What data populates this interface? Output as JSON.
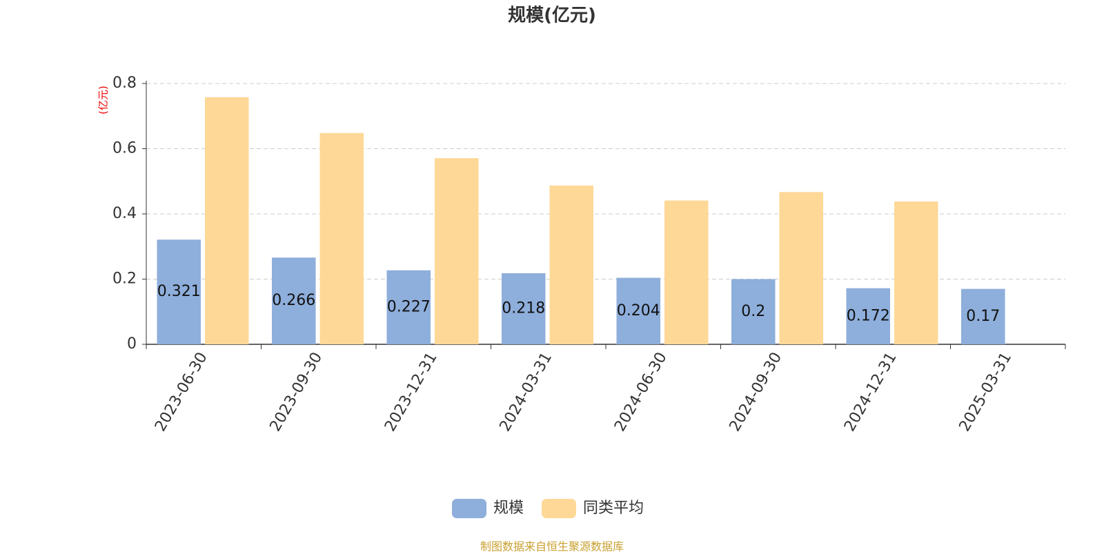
{
  "chart_data": {
    "type": "bar",
    "title": "规模(亿元)",
    "y_label": "(亿元)",
    "categories": [
      "2023-06-30",
      "2023-09-30",
      "2023-12-31",
      "2024-03-31",
      "2024-06-30",
      "2024-09-30",
      "2024-12-31",
      "2025-03-31"
    ],
    "series": [
      {
        "name": "规模",
        "color": "#8eaedb",
        "values": [
          0.321,
          0.266,
          0.227,
          0.218,
          0.204,
          0.2,
          0.172,
          0.17
        ]
      },
      {
        "name": "同类平均",
        "color": "#fed897",
        "values": [
          0.758,
          0.648,
          0.571,
          0.487,
          0.441,
          0.467,
          0.438,
          null
        ]
      }
    ],
    "ylim": [
      0,
      0.8
    ],
    "yticks": [
      0,
      0.2,
      0.4,
      0.6,
      0.8
    ],
    "grid": true,
    "legend": "bottom",
    "source": "制图数据来自恒生聚源数据库"
  }
}
